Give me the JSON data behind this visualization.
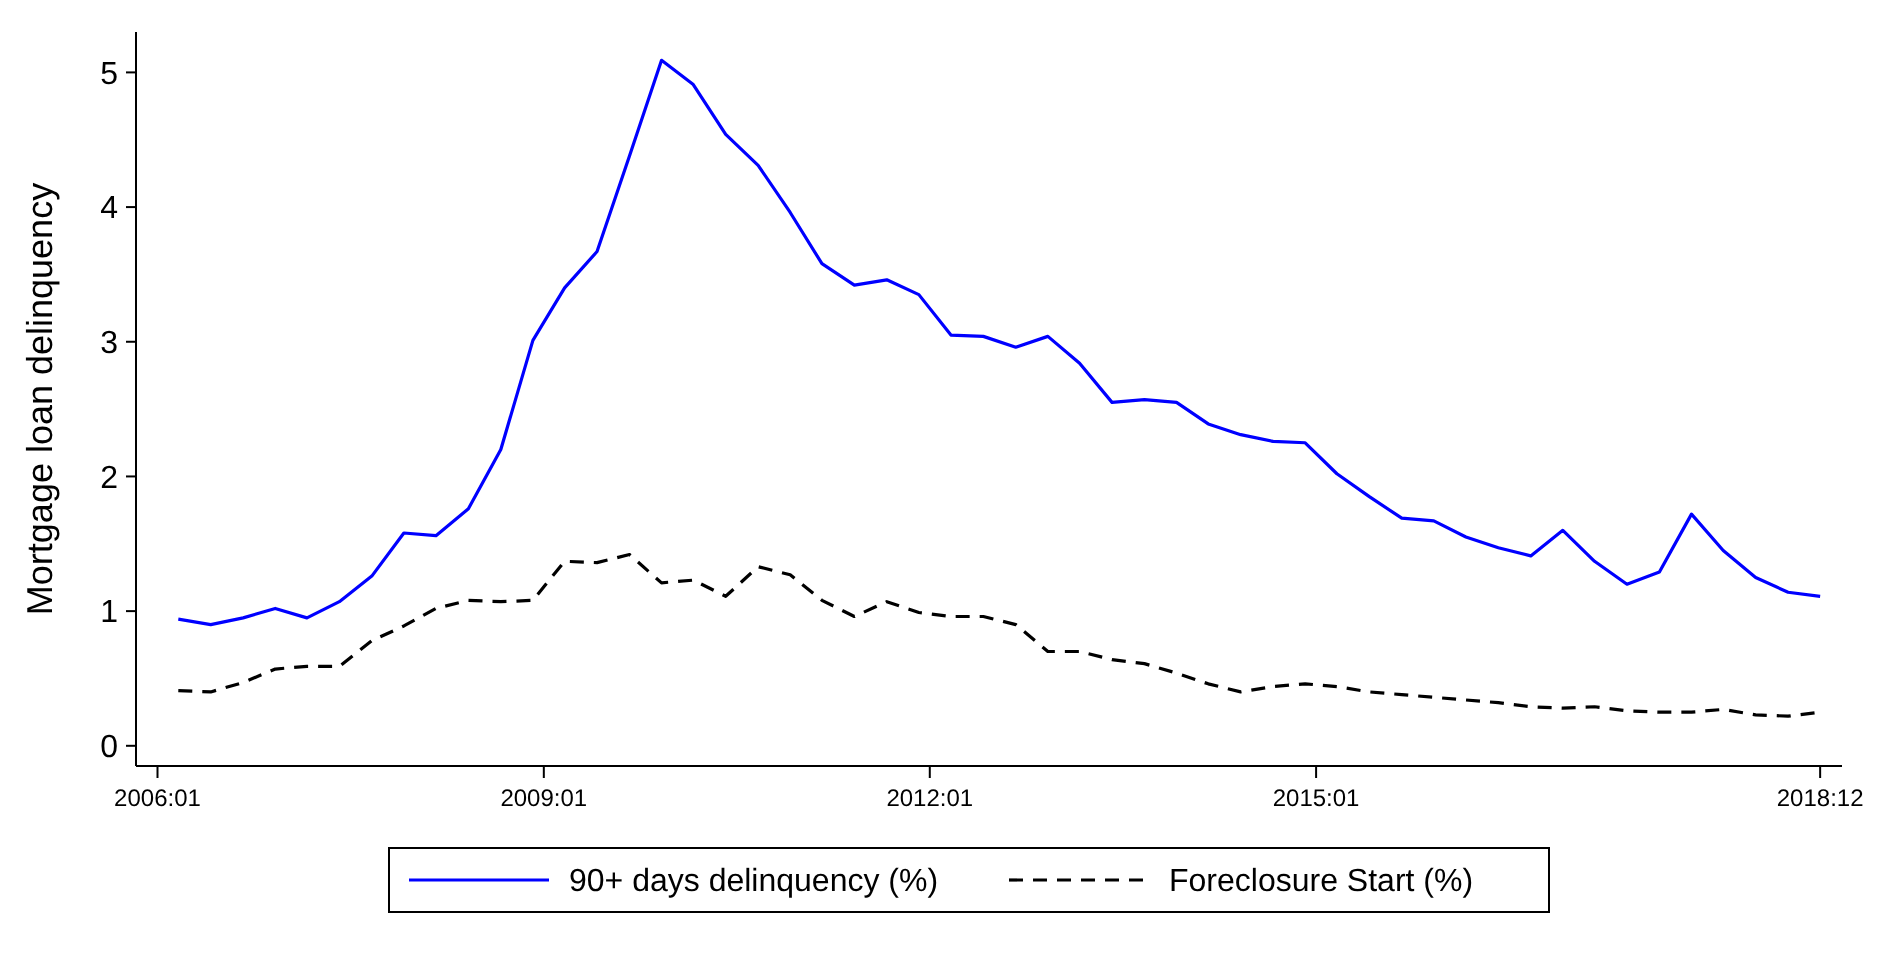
{
  "chart_data": {
    "type": "line",
    "ylabel": "Mortgage loan delinquency",
    "x": [
      "2006-03",
      "2006-06",
      "2006-09",
      "2006-12",
      "2007-03",
      "2007-06",
      "2007-09",
      "2007-12",
      "2008-03",
      "2008-06",
      "2008-09",
      "2008-12",
      "2009-03",
      "2009-06",
      "2009-09",
      "2009-12",
      "2010-03",
      "2010-06",
      "2010-09",
      "2010-12",
      "2011-03",
      "2011-06",
      "2011-09",
      "2011-12",
      "2012-03",
      "2012-06",
      "2012-09",
      "2012-12",
      "2013-03",
      "2013-06",
      "2013-09",
      "2013-12",
      "2014-03",
      "2014-06",
      "2014-09",
      "2014-12",
      "2015-03",
      "2015-06",
      "2015-09",
      "2015-12",
      "2016-03",
      "2016-06",
      "2016-09",
      "2016-12",
      "2017-03",
      "2017-06",
      "2017-09",
      "2017-12",
      "2018-03",
      "2018-06",
      "2018-09",
      "2018-12"
    ],
    "series": [
      {
        "name": "90+ days delinquency (%)",
        "color": "#0000ff",
        "line_style": "solid",
        "values": [
          0.94,
          0.9,
          0.95,
          1.02,
          0.95,
          1.07,
          1.26,
          1.58,
          1.56,
          1.76,
          2.2,
          3.01,
          3.4,
          3.67,
          4.38,
          5.09,
          4.91,
          4.54,
          4.31,
          3.96,
          3.58,
          3.42,
          3.46,
          3.35,
          3.05,
          3.04,
          2.96,
          3.04,
          2.84,
          2.55,
          2.57,
          2.55,
          2.39,
          2.31,
          2.26,
          2.25,
          2.02,
          1.85,
          1.69,
          1.67,
          1.55,
          1.47,
          1.41,
          1.6,
          1.37,
          1.2,
          1.29,
          1.72,
          1.45,
          1.25,
          1.14,
          1.11
        ]
      },
      {
        "name": "Foreclosure Start (%)",
        "color": "#000000",
        "line_style": "dashed",
        "values": [
          0.41,
          0.4,
          0.47,
          0.57,
          0.59,
          0.59,
          0.78,
          0.89,
          1.02,
          1.08,
          1.07,
          1.08,
          1.37,
          1.36,
          1.42,
          1.21,
          1.23,
          1.11,
          1.33,
          1.27,
          1.08,
          0.96,
          1.07,
          0.99,
          0.96,
          0.96,
          0.9,
          0.7,
          0.7,
          0.64,
          0.61,
          0.54,
          0.46,
          0.4,
          0.44,
          0.46,
          0.44,
          0.4,
          0.38,
          0.36,
          0.34,
          0.32,
          0.29,
          0.28,
          0.29,
          0.26,
          0.25,
          0.25,
          0.27,
          0.23,
          0.22,
          0.25
        ]
      }
    ],
    "xlim": [
      "2005-11",
      "2019-02"
    ],
    "xticks": [
      {
        "value": "2006-01",
        "label": "2006:01"
      },
      {
        "value": "2009-01",
        "label": "2009:01"
      },
      {
        "value": "2012-01",
        "label": "2012:01"
      },
      {
        "value": "2015-01",
        "label": "2015:01"
      },
      {
        "value": "2018-12",
        "label": "2018:12"
      }
    ],
    "ylim": [
      -0.15,
      5.3
    ],
    "yticks": [
      0,
      1,
      2,
      3,
      4,
      5
    ],
    "grid": false,
    "legend": "bottom"
  }
}
